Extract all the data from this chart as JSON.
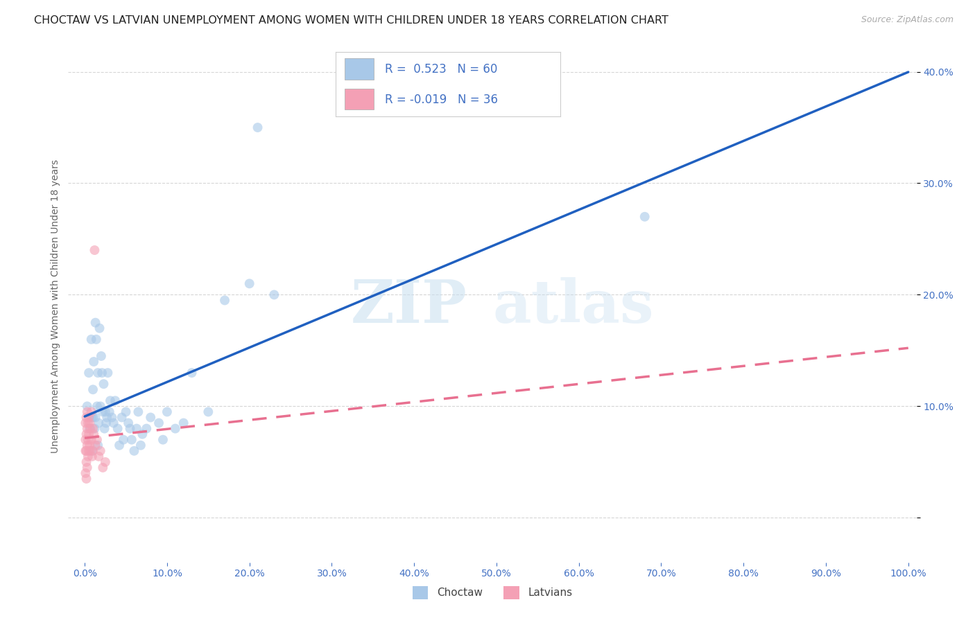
{
  "title": "CHOCTAW VS LATVIAN UNEMPLOYMENT AMONG WOMEN WITH CHILDREN UNDER 18 YEARS CORRELATION CHART",
  "source": "Source: ZipAtlas.com",
  "ylabel": "Unemployment Among Women with Children Under 18 years",
  "choctaw_color": "#A8C8E8",
  "latvian_color": "#F4A0B5",
  "choctaw_line_color": "#2060C0",
  "latvian_line_color": "#E87090",
  "choctaw_R": 0.523,
  "choctaw_N": 60,
  "latvian_R": -0.019,
  "latvian_N": 36,
  "legend_label_choctaw": "Choctaw",
  "legend_label_latvian": "Latvians",
  "tick_color": "#4472C4",
  "axis_label_color": "#666666",
  "grid_color": "#CCCCCC",
  "background_color": "#FFFFFF",
  "title_fontsize": 11.5,
  "label_fontsize": 10,
  "tick_fontsize": 10,
  "scatter_size": 100,
  "scatter_alpha": 0.6,
  "line_width": 2.5,
  "choctaw_x": [
    0.003,
    0.005,
    0.006,
    0.008,
    0.008,
    0.009,
    0.01,
    0.01,
    0.011,
    0.012,
    0.013,
    0.013,
    0.014,
    0.015,
    0.016,
    0.016,
    0.017,
    0.018,
    0.019,
    0.02,
    0.021,
    0.022,
    0.023,
    0.024,
    0.025,
    0.026,
    0.027,
    0.028,
    0.03,
    0.031,
    0.033,
    0.035,
    0.037,
    0.04,
    0.042,
    0.045,
    0.047,
    0.05,
    0.053,
    0.055,
    0.057,
    0.06,
    0.063,
    0.065,
    0.068,
    0.07,
    0.075,
    0.08,
    0.09,
    0.095,
    0.1,
    0.11,
    0.12,
    0.13,
    0.15,
    0.17,
    0.2,
    0.23,
    0.68,
    0.21
  ],
  "choctaw_y": [
    0.1,
    0.13,
    0.08,
    0.09,
    0.16,
    0.06,
    0.115,
    0.09,
    0.14,
    0.08,
    0.175,
    0.09,
    0.16,
    0.1,
    0.065,
    0.13,
    0.085,
    0.17,
    0.1,
    0.145,
    0.13,
    0.095,
    0.12,
    0.08,
    0.095,
    0.085,
    0.09,
    0.13,
    0.095,
    0.105,
    0.09,
    0.085,
    0.105,
    0.08,
    0.065,
    0.09,
    0.07,
    0.095,
    0.085,
    0.08,
    0.07,
    0.06,
    0.08,
    0.095,
    0.065,
    0.075,
    0.08,
    0.09,
    0.085,
    0.07,
    0.095,
    0.08,
    0.085,
    0.13,
    0.095,
    0.195,
    0.21,
    0.2,
    0.27,
    0.35
  ],
  "latvian_x": [
    0.001,
    0.001,
    0.001,
    0.001,
    0.002,
    0.002,
    0.002,
    0.002,
    0.002,
    0.003,
    0.003,
    0.003,
    0.003,
    0.004,
    0.004,
    0.004,
    0.005,
    0.005,
    0.005,
    0.006,
    0.006,
    0.007,
    0.007,
    0.008,
    0.008,
    0.009,
    0.01,
    0.01,
    0.011,
    0.012,
    0.013,
    0.015,
    0.017,
    0.019,
    0.022,
    0.025
  ],
  "latvian_y": [
    0.085,
    0.07,
    0.06,
    0.04,
    0.09,
    0.075,
    0.06,
    0.05,
    0.035,
    0.095,
    0.08,
    0.065,
    0.045,
    0.085,
    0.07,
    0.055,
    0.09,
    0.075,
    0.06,
    0.085,
    0.065,
    0.08,
    0.06,
    0.095,
    0.07,
    0.055,
    0.08,
    0.06,
    0.075,
    0.24,
    0.065,
    0.07,
    0.055,
    0.06,
    0.045,
    0.05
  ],
  "xlim": [
    -0.02,
    1.01
  ],
  "ylim": [
    -0.04,
    0.42
  ],
  "xticks": [
    0.0,
    0.1,
    0.2,
    0.3,
    0.4,
    0.5,
    0.6,
    0.7,
    0.8,
    0.9,
    1.0
  ],
  "yticks": [
    0.0,
    0.1,
    0.2,
    0.3,
    0.4
  ]
}
